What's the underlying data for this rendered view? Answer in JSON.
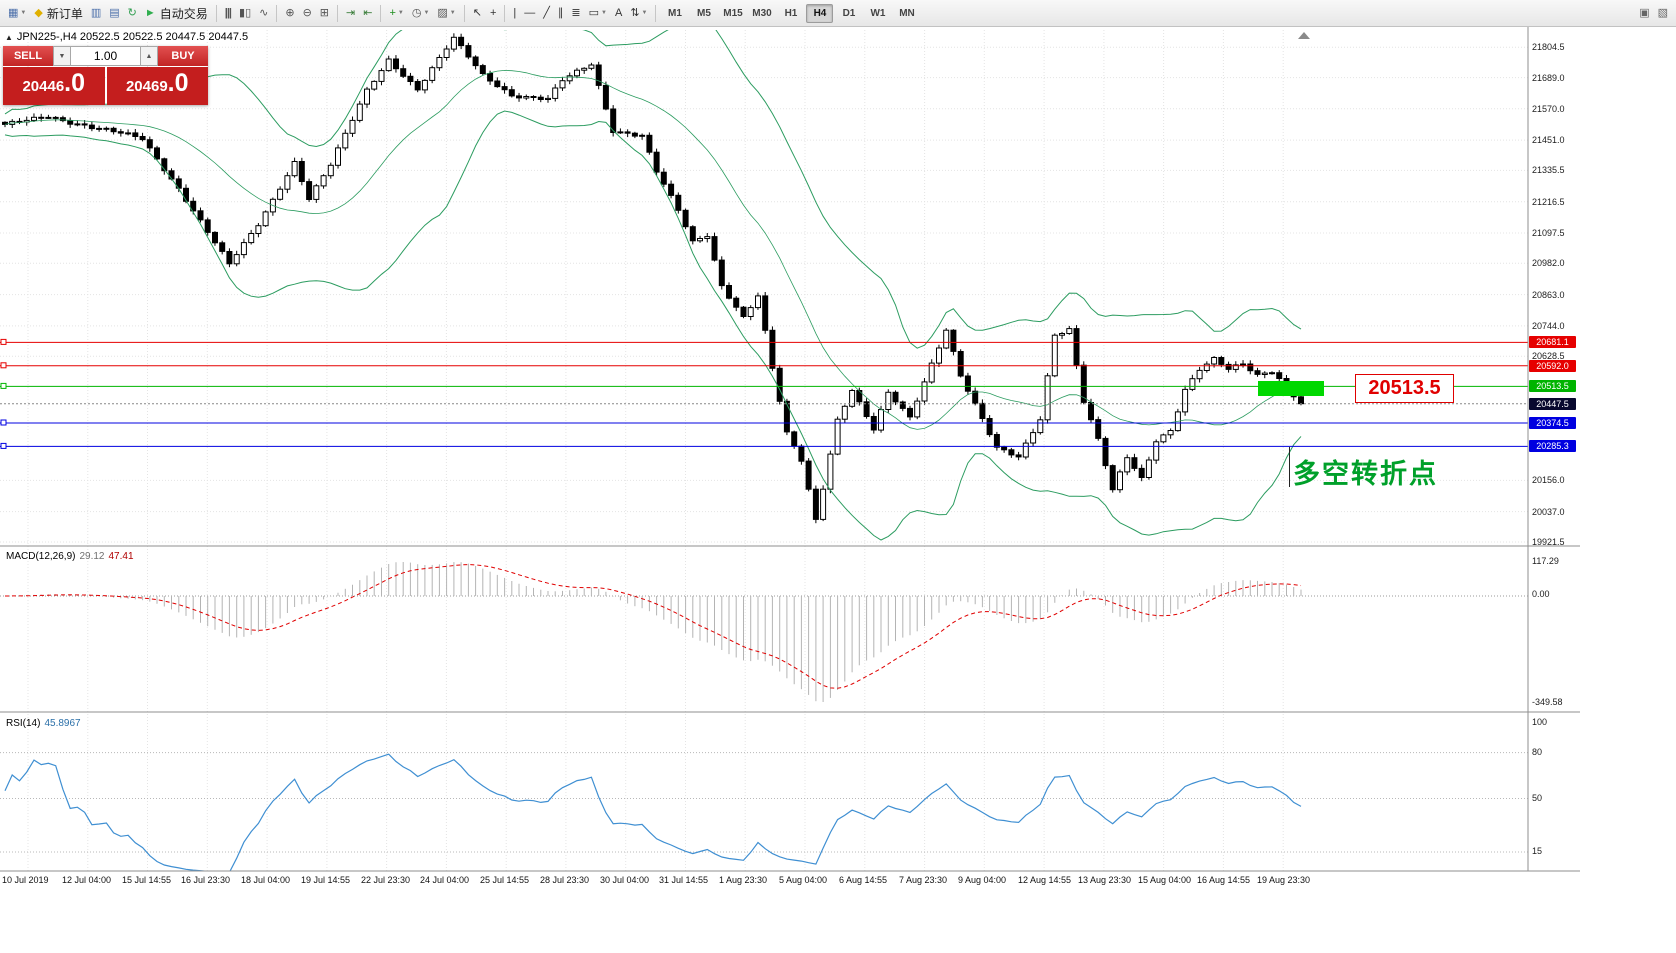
{
  "toolbar": {
    "groups": [
      {
        "items": [
          {
            "name": "new-chart-button",
            "icon": "new-chart-icon",
            "glyph": "▦",
            "color": "#4a6ea9",
            "dropdown": true
          },
          {
            "name": "new-order-button",
            "icon": "new-order-icon",
            "glyph": "◆",
            "color": "#e0b000",
            "label": "新订单"
          },
          {
            "name": "market-watch-button",
            "icon": "market-watch-icon",
            "glyph": "▥",
            "color": "#4a6ea9"
          },
          {
            "name": "profiles-button",
            "icon": "profiles-icon",
            "glyph": "▤",
            "color": "#4a6ea9"
          },
          {
            "name": "refresh-button",
            "icon": "refresh-icon",
            "glyph": "↻",
            "color": "#2f9e4f"
          },
          {
            "name": "autotrading-button",
            "icon": "autotrading-icon",
            "glyph": "►",
            "color": "#2fae4e",
            "label": "自动交易"
          }
        ]
      },
      {
        "items": [
          {
            "name": "bar-chart-button",
            "icon": "bar-chart-icon",
            "glyph": "|||",
            "color": "#555555"
          },
          {
            "name": "candle-chart-button",
            "icon": "candle-chart-icon",
            "glyph": "▮▯",
            "color": "#555555"
          },
          {
            "name": "line-chart-button",
            "icon": "line-chart-icon",
            "glyph": "∿",
            "color": "#555555"
          }
        ]
      },
      {
        "items": [
          {
            "name": "zoom-in-button",
            "icon": "zoom-in-icon",
            "glyph": "⊕",
            "color": "#555555"
          },
          {
            "name": "zoom-out-button",
            "icon": "zoom-out-icon",
            "glyph": "⊖",
            "color": "#555555"
          },
          {
            "name": "tile-windows-button",
            "icon": "tile-windows-icon",
            "glyph": "⊞",
            "color": "#555555"
          }
        ]
      },
      {
        "items": [
          {
            "name": "auto-scroll-button",
            "icon": "auto-scroll-icon",
            "glyph": "⇥",
            "color": "#3a7d3a"
          },
          {
            "name": "chart-shift-button",
            "icon": "chart-shift-icon",
            "glyph": "⇤",
            "color": "#3a7d3a"
          }
        ]
      },
      {
        "items": [
          {
            "name": "indicators-button",
            "icon": "indicators-icon",
            "glyph": "+",
            "color": "#1e8e1e",
            "dropdown": true
          },
          {
            "name": "periods-button",
            "icon": "periods-icon",
            "glyph": "◷",
            "color": "#555555",
            "dropdown": true
          },
          {
            "name": "templates-button",
            "icon": "templates-icon",
            "glyph": "▨",
            "color": "#555555",
            "dropdown": true
          }
        ]
      },
      {
        "items": [
          {
            "name": "cursor-button",
            "icon": "cursor-icon",
            "glyph": "↖",
            "color": "#333333"
          },
          {
            "name": "crosshair-button",
            "icon": "crosshair-icon",
            "glyph": "+",
            "color": "#333333"
          }
        ]
      },
      {
        "items": [
          {
            "name": "vertical-line-button",
            "icon": "vertical-line-icon",
            "glyph": "|",
            "color": "#333333"
          },
          {
            "name": "horizontal-line-button",
            "icon": "horizontal-line-icon",
            "glyph": "—",
            "color": "#333333"
          },
          {
            "name": "trendline-button",
            "icon": "trendline-icon",
            "glyph": "╱",
            "color": "#333333"
          },
          {
            "name": "channel-button",
            "icon": "channel-icon",
            "glyph": "∥",
            "color": "#333333"
          },
          {
            "name": "fibonacci-button",
            "icon": "fibonacci-icon",
            "glyph": "≣",
            "color": "#333333"
          },
          {
            "name": "shapes-button",
            "icon": "shapes-icon",
            "glyph": "▭",
            "color": "#333333",
            "dropdown": true
          },
          {
            "name": "text-button",
            "icon": "text-icon",
            "glyph": "A",
            "color": "#333333"
          },
          {
            "name": "arrows-button",
            "icon": "arrows-icon",
            "glyph": "⇅",
            "color": "#333333",
            "dropdown": true
          }
        ]
      }
    ],
    "timeframes": [
      "M1",
      "M5",
      "M15",
      "M30",
      "H1",
      "H4",
      "D1",
      "W1",
      "MN"
    ],
    "active_timeframe": "H4",
    "right_items": [
      {
        "name": "data-window-button",
        "icon": "data-window-icon",
        "glyph": "▣",
        "color": "#666666"
      },
      {
        "name": "window-list-button",
        "icon": "window-list-icon",
        "glyph": "▧",
        "color": "#666666"
      }
    ]
  },
  "chart": {
    "collapse_glyph": "▲",
    "symbol_line": "JPN225-,H4  20522.5 20522.5 20447.5 20447.5",
    "trade_panel": {
      "sell_label": "SELL",
      "buy_label": "BUY",
      "volume": "1.00",
      "spinner_down": "▼",
      "spinner_up": "▲",
      "sell_price_main": "20446",
      "sell_price_frac": ".0",
      "buy_price_main": "20469",
      "buy_price_frac": ".0"
    },
    "price_axis_ticks": [
      "21804.5",
      "21689.0",
      "21570.0",
      "21451.0",
      "21335.5",
      "21216.5",
      "21097.5",
      "20982.0",
      "20863.0",
      "20744.0",
      "20628.5",
      "20156.0",
      "20037.0",
      "19921.5"
    ],
    "hlines": [
      {
        "value": 20681.1,
        "label": "20681.1",
        "color": "#e60000"
      },
      {
        "value": 20592.0,
        "label": "20592.0",
        "color": "#e60000"
      },
      {
        "value": 20513.5,
        "label": "20513.5",
        "color": "#00b400"
      },
      {
        "value": 20374.5,
        "label": "20374.5",
        "color": "#0000e0"
      },
      {
        "value": 20285.3,
        "label": "20285.3",
        "color": "#0000e0"
      }
    ],
    "current_price": {
      "value": 20447.5,
      "label": "20447.5",
      "bg": "#08082e"
    },
    "annotations": {
      "price_callout": "20513.5",
      "note_text": "多空转折点",
      "highlight_color": "#00d800"
    },
    "time_axis": [
      "10 Jul 2019",
      "12 Jul 04:00",
      "15 Jul 14:55",
      "16 Jul 23:30",
      "18 Jul 04:00",
      "19 Jul 14:55",
      "22 Jul 23:30",
      "24 Jul 04:00",
      "25 Jul 14:55",
      "28 Jul 23:30",
      "30 Jul 04:00",
      "31 Jul 14:55",
      "1 Aug 23:30",
      "5 Aug 04:00",
      "6 Aug 14:55",
      "7 Aug 23:30",
      "9 Aug 04:00",
      "12 Aug 14:55",
      "13 Aug 23:30",
      "15 Aug 04:00",
      "16 Aug 14:55",
      "19 Aug 23:30"
    ]
  },
  "macd": {
    "title": "MACD(12,26,9)",
    "value_main": "29.12",
    "value_signal": "47.41",
    "axis_ticks": [
      "117.29",
      "0.00",
      "-349.58"
    ]
  },
  "rsi": {
    "title": "RSI(14)",
    "value": "45.8967",
    "axis_ticks": [
      "100",
      "80",
      "50",
      "15"
    ],
    "levels": [
      80,
      50,
      15
    ]
  },
  "chart_data": {
    "type": "candlestick",
    "symbol": "JPN225",
    "timeframe": "H4",
    "bars": 180,
    "ohlc_current": {
      "open": 20522.5,
      "high": 20522.5,
      "low": 20447.5,
      "close": 20447.5
    },
    "price_range": {
      "min": 19910,
      "max": 21870
    },
    "price_waypoints": [
      [
        0,
        21505
      ],
      [
        6,
        21545
      ],
      [
        12,
        21500
      ],
      [
        19,
        21455
      ],
      [
        24,
        21270
      ],
      [
        31,
        20975
      ],
      [
        35,
        21130
      ],
      [
        40,
        21370
      ],
      [
        42,
        21230
      ],
      [
        45,
        21355
      ],
      [
        50,
        21640
      ],
      [
        53,
        21760
      ],
      [
        57,
        21645
      ],
      [
        62,
        21835
      ],
      [
        66,
        21700
      ],
      [
        70,
        21625
      ],
      [
        75,
        21605
      ],
      [
        77,
        21675
      ],
      [
        81,
        21740
      ],
      [
        84,
        21490
      ],
      [
        88,
        21470
      ],
      [
        90,
        21330
      ],
      [
        93,
        21180
      ],
      [
        95,
        21060
      ],
      [
        97,
        21090
      ],
      [
        99,
        20900
      ],
      [
        102,
        20780
      ],
      [
        104,
        20860
      ],
      [
        106,
        20580
      ],
      [
        108,
        20330
      ],
      [
        110,
        20230
      ],
      [
        112,
        20005
      ],
      [
        113,
        20130
      ],
      [
        115,
        20390
      ],
      [
        117,
        20505
      ],
      [
        120,
        20350
      ],
      [
        122,
        20485
      ],
      [
        125,
        20390
      ],
      [
        128,
        20600
      ],
      [
        130,
        20735
      ],
      [
        132,
        20560
      ],
      [
        135,
        20390
      ],
      [
        137,
        20275
      ],
      [
        140,
        20240
      ],
      [
        143,
        20390
      ],
      [
        145,
        20715
      ],
      [
        147,
        20735
      ],
      [
        149,
        20460
      ],
      [
        151,
        20310
      ],
      [
        153,
        20115
      ],
      [
        155,
        20240
      ],
      [
        157,
        20160
      ],
      [
        159,
        20310
      ],
      [
        161,
        20350
      ],
      [
        163,
        20505
      ],
      [
        165,
        20580
      ],
      [
        167,
        20615
      ],
      [
        169,
        20575
      ],
      [
        171,
        20595
      ],
      [
        173,
        20555
      ],
      [
        175,
        20575
      ],
      [
        177,
        20520
      ],
      [
        179,
        20447.5
      ]
    ],
    "bollinger": {
      "period": 20,
      "deviation": 2,
      "color": "#2c9c60"
    },
    "macd_params": {
      "fast": 12,
      "slow": 26,
      "signal": 9
    },
    "rsi_params": {
      "period": 14
    }
  }
}
